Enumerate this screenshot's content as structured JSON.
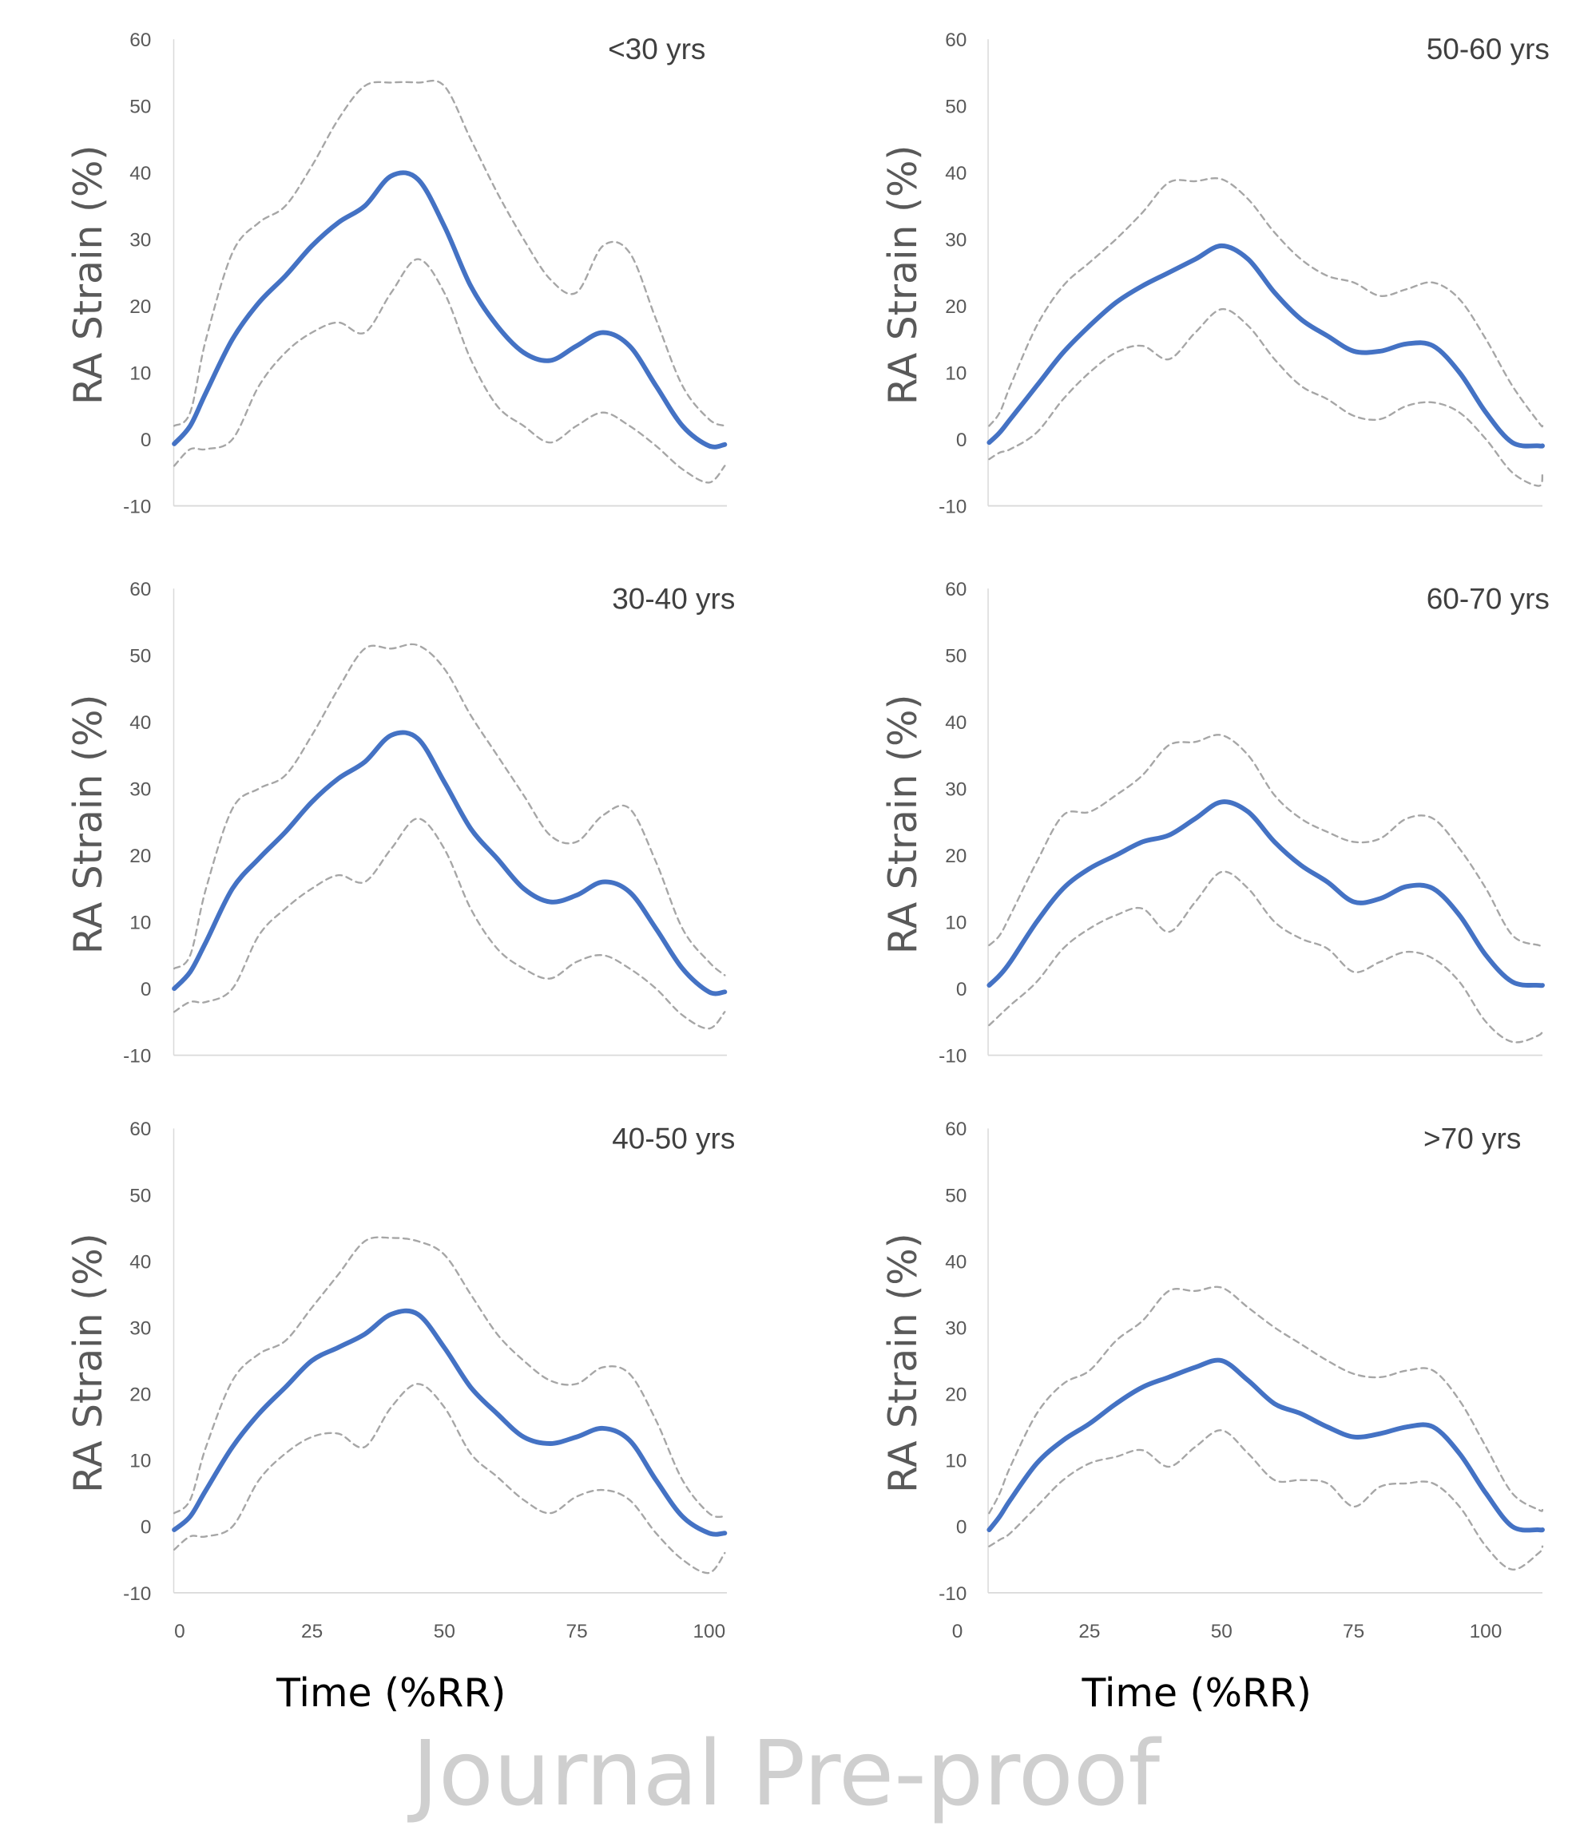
{
  "watermark": "Journal Pre-proof",
  "colors": {
    "mean": "#4472c4",
    "sd": "#a6a6a6",
    "axis": "#d9d9d9"
  },
  "chart_data": [
    {
      "type": "line",
      "title": "<30 yrs",
      "ylabel": "RA Strain (%)",
      "xlabel": "",
      "ylim": [
        -10,
        60
      ],
      "yticks": [
        "60",
        "50",
        "40",
        "30",
        "20",
        "10",
        "0",
        "-10"
      ],
      "xticks": [],
      "xlim": [
        -1.1,
        103.4
      ],
      "grid": false,
      "series": [
        {
          "style": "solid",
          "x": [
            -1,
            2,
            5,
            10,
            15,
            20,
            25,
            30,
            35,
            40,
            45,
            50,
            55,
            60,
            65,
            70,
            75,
            80,
            85,
            90,
            95,
            100,
            103
          ],
          "y": [
            -0.7,
            2,
            7,
            15,
            20.5,
            24.5,
            29,
            32.5,
            35,
            39.5,
            39,
            32,
            23,
            17,
            13,
            11.8,
            14,
            16,
            14,
            8,
            2,
            -1,
            -0.8
          ]
        },
        {
          "style": "dashed",
          "x": [
            -1,
            2,
            5,
            10,
            15,
            20,
            25,
            30,
            35,
            40,
            45,
            50,
            55,
            60,
            65,
            70,
            75,
            80,
            85,
            90,
            95,
            100,
            103
          ],
          "y": [
            2,
            4,
            15,
            28,
            32.5,
            35,
            41,
            48,
            53,
            53.5,
            53.5,
            53,
            45,
            37,
            30,
            24,
            22,
            29,
            28,
            18,
            8,
            3,
            2
          ]
        },
        {
          "style": "dashed",
          "x": [
            -1,
            2,
            5,
            10,
            15,
            20,
            25,
            30,
            35,
            40,
            45,
            50,
            55,
            60,
            65,
            70,
            75,
            80,
            85,
            90,
            95,
            100,
            103
          ],
          "y": [
            -4,
            -1.5,
            -1.5,
            0,
            8,
            13,
            16,
            17.5,
            16,
            22,
            27,
            22,
            12,
            5,
            2,
            -0.5,
            2,
            4,
            2,
            -1,
            -4.5,
            -6.5,
            -4
          ]
        }
      ]
    },
    {
      "type": "line",
      "title": "50-60 yrs",
      "ylabel": "RA Strain (%)",
      "xlabel": "",
      "ylim": [
        -10,
        60
      ],
      "yticks": [
        "60",
        "50",
        "40",
        "30",
        "20",
        "10",
        "0",
        "-10"
      ],
      "xticks": [],
      "xlim": [
        5.8,
        110.7
      ],
      "grid": false,
      "series": [
        {
          "style": "solid",
          "x": [
            6,
            8,
            10,
            15,
            20,
            25,
            30,
            35,
            40,
            45,
            50,
            55,
            60,
            65,
            70,
            75,
            80,
            85,
            90,
            95,
            100,
            105,
            110,
            110.7
          ],
          "y": [
            -0.5,
            1,
            3,
            8,
            13,
            17,
            20.5,
            23,
            25,
            27,
            29,
            27,
            22,
            18,
            15.5,
            13.2,
            13.2,
            14.3,
            14,
            10,
            4,
            -0.5,
            -1,
            -1
          ]
        },
        {
          "style": "dashed",
          "x": [
            6,
            8,
            10,
            15,
            20,
            25,
            30,
            35,
            40,
            45,
            50,
            55,
            60,
            65,
            70,
            75,
            80,
            85,
            90,
            95,
            100,
            105,
            110,
            110.7
          ],
          "y": [
            2,
            4,
            8,
            17,
            23,
            26.5,
            30,
            34,
            38.5,
            38.7,
            39,
            36,
            31,
            27,
            24.5,
            23.5,
            21.5,
            22.5,
            23.5,
            21,
            15,
            8,
            2.5,
            2
          ]
        },
        {
          "style": "dashed",
          "x": [
            6,
            8,
            10,
            15,
            20,
            25,
            30,
            35,
            40,
            45,
            50,
            55,
            60,
            65,
            70,
            75,
            80,
            85,
            90,
            95,
            100,
            105,
            110,
            110.7
          ],
          "y": [
            -3,
            -2,
            -1.5,
            1,
            6,
            10,
            13,
            14,
            12,
            16,
            19.5,
            17,
            12,
            8,
            6,
            3.5,
            3,
            5,
            5.5,
            4,
            0,
            -5,
            -7,
            -5
          ]
        }
      ]
    },
    {
      "type": "line",
      "title": "30-40 yrs",
      "ylabel": "RA Strain (%)",
      "xlabel": "",
      "ylim": [
        -10,
        60
      ],
      "yticks": [
        "60",
        "50",
        "40",
        "30",
        "20",
        "10",
        "0",
        "-10"
      ],
      "xticks": [],
      "xlim": [
        -1.1,
        103.4
      ],
      "grid": false,
      "series": [
        {
          "style": "solid",
          "x": [
            -1,
            2,
            5,
            10,
            15,
            20,
            25,
            30,
            35,
            40,
            45,
            50,
            55,
            60,
            65,
            70,
            75,
            80,
            85,
            90,
            95,
            100,
            103
          ],
          "y": [
            0,
            2.5,
            7,
            15,
            19.5,
            23.5,
            28,
            31.5,
            34,
            38,
            37.5,
            31,
            24,
            19.5,
            15,
            13,
            14,
            16,
            14.5,
            9,
            3,
            -0.5,
            -0.5
          ]
        },
        {
          "style": "dashed",
          "x": [
            -1,
            2,
            5,
            10,
            15,
            20,
            25,
            30,
            35,
            40,
            45,
            50,
            55,
            60,
            65,
            70,
            75,
            80,
            85,
            90,
            95,
            100,
            103
          ],
          "y": [
            3,
            5,
            15,
            27,
            30,
            32,
            38,
            45,
            51,
            51,
            51.5,
            48,
            41,
            35,
            29,
            23,
            22,
            26,
            27,
            19,
            9,
            4,
            2
          ]
        },
        {
          "style": "dashed",
          "x": [
            -1,
            2,
            5,
            10,
            15,
            20,
            25,
            30,
            35,
            40,
            45,
            50,
            55,
            60,
            65,
            70,
            75,
            80,
            85,
            90,
            95,
            100,
            103
          ],
          "y": [
            -3.5,
            -2,
            -2,
            0,
            8,
            12,
            15,
            17,
            16,
            21,
            25.5,
            21,
            12,
            6,
            3,
            1.5,
            4,
            5,
            3,
            0,
            -4,
            -6,
            -3.5
          ]
        }
      ]
    },
    {
      "type": "line",
      "title": "60-70 yrs",
      "ylabel": "RA Strain (%)",
      "xlabel": "",
      "ylim": [
        -10,
        60
      ],
      "yticks": [
        "60",
        "50",
        "40",
        "30",
        "20",
        "10",
        "0",
        "-10"
      ],
      "xticks": [],
      "xlim": [
        5.8,
        110.7
      ],
      "grid": false,
      "series": [
        {
          "style": "solid",
          "x": [
            6,
            8,
            10,
            15,
            20,
            25,
            30,
            35,
            40,
            45,
            50,
            55,
            60,
            65,
            70,
            75,
            80,
            85,
            90,
            95,
            100,
            105,
            110,
            110.7
          ],
          "y": [
            0.5,
            2,
            4,
            10,
            15,
            18,
            20,
            22,
            23,
            25.5,
            28,
            26.5,
            22,
            18.5,
            16,
            13,
            13.5,
            15.3,
            15,
            11,
            5,
            1,
            0.5,
            0.5
          ]
        },
        {
          "style": "dashed",
          "x": [
            6,
            8,
            10,
            15,
            20,
            25,
            30,
            35,
            40,
            45,
            50,
            55,
            60,
            65,
            70,
            75,
            80,
            85,
            90,
            95,
            100,
            105,
            110,
            110.7
          ],
          "y": [
            6.5,
            8,
            11,
            19,
            26,
            26.5,
            29,
            32,
            36.5,
            37,
            38,
            35,
            29,
            25.5,
            23.5,
            22,
            22.5,
            25.5,
            25.5,
            21,
            15,
            8,
            6.5,
            6.5
          ]
        },
        {
          "style": "dashed",
          "x": [
            6,
            8,
            10,
            15,
            20,
            25,
            30,
            35,
            40,
            45,
            50,
            55,
            60,
            65,
            70,
            75,
            80,
            85,
            90,
            95,
            100,
            105,
            110,
            110.7
          ],
          "y": [
            -5.5,
            -4,
            -2.5,
            1,
            6,
            9,
            11,
            12,
            8.5,
            13,
            17.5,
            15,
            10,
            7.5,
            6,
            2.5,
            4,
            5.5,
            4.5,
            1,
            -5,
            -8,
            -7,
            -6
          ]
        }
      ]
    },
    {
      "type": "line",
      "title": "40-50 yrs",
      "ylabel": "RA Strain (%)",
      "xlabel": "Time (%RR)",
      "ylim": [
        -10,
        60
      ],
      "yticks": [
        "60",
        "50",
        "40",
        "30",
        "20",
        "10",
        "0",
        "-10"
      ],
      "xticks": [
        "0",
        "25",
        "50",
        "75",
        "100"
      ],
      "xlim": [
        -1.1,
        103.4
      ],
      "grid": false,
      "series": [
        {
          "style": "solid",
          "x": [
            -1,
            2,
            5,
            10,
            15,
            20,
            25,
            30,
            35,
            40,
            45,
            50,
            55,
            60,
            65,
            70,
            75,
            80,
            85,
            90,
            95,
            100,
            103
          ],
          "y": [
            -0.5,
            1.5,
            5.5,
            12,
            17,
            21,
            25,
            27,
            29,
            32,
            32,
            27,
            21,
            17,
            13.5,
            12.5,
            13.5,
            14.8,
            13,
            7,
            1.5,
            -1,
            -1
          ]
        },
        {
          "style": "dashed",
          "x": [
            -1,
            2,
            5,
            10,
            15,
            20,
            25,
            30,
            35,
            40,
            45,
            50,
            55,
            60,
            65,
            70,
            75,
            80,
            85,
            90,
            95,
            100,
            103
          ],
          "y": [
            2,
            4,
            12,
            22,
            26,
            28,
            33,
            38,
            43,
            43.5,
            43,
            41,
            35,
            29,
            25,
            22,
            21.5,
            24,
            23,
            16,
            7,
            2,
            1.5
          ]
        },
        {
          "style": "dashed",
          "x": [
            -1,
            2,
            5,
            10,
            15,
            20,
            25,
            30,
            35,
            40,
            45,
            50,
            55,
            60,
            65,
            70,
            75,
            80,
            85,
            90,
            95,
            100,
            103
          ],
          "y": [
            -3.5,
            -1.5,
            -1.5,
            0,
            7,
            11,
            13.5,
            14,
            12,
            18,
            21.5,
            18,
            11,
            7.5,
            4,
            2,
            4.5,
            5.5,
            4,
            -1,
            -5,
            -7,
            -4
          ]
        }
      ]
    },
    {
      "type": "line",
      "title": ">70 yrs",
      "ylabel": "RA Strain (%)",
      "xlabel": "Time (%RR)",
      "ylim": [
        -10,
        60
      ],
      "yticks": [
        "60",
        "50",
        "40",
        "30",
        "20",
        "10",
        "0",
        "-10"
      ],
      "xticks": [
        "0",
        "25",
        "50",
        "75",
        "100"
      ],
      "xlim": [
        5.8,
        110.7
      ],
      "grid": false,
      "series": [
        {
          "style": "solid",
          "x": [
            6,
            8,
            10,
            15,
            20,
            25,
            30,
            35,
            40,
            45,
            50,
            55,
            60,
            65,
            70,
            75,
            80,
            85,
            90,
            95,
            100,
            105,
            110,
            110.7
          ],
          "y": [
            -0.5,
            1.5,
            4,
            9.5,
            13,
            15.5,
            18.5,
            21,
            22.5,
            24,
            25,
            22,
            18.5,
            17,
            15,
            13.5,
            14,
            15,
            15,
            11,
            5,
            0,
            -0.5,
            -0.5
          ]
        },
        {
          "style": "dashed",
          "x": [
            6,
            8,
            10,
            15,
            20,
            25,
            30,
            35,
            40,
            45,
            50,
            55,
            60,
            65,
            70,
            75,
            80,
            85,
            90,
            95,
            100,
            105,
            110,
            110.7
          ],
          "y": [
            2,
            5,
            9,
            17,
            21.5,
            23.5,
            28,
            31,
            35.5,
            35.5,
            36,
            33,
            30,
            27.5,
            25,
            23,
            22.5,
            23.5,
            23.5,
            19,
            12,
            5,
            2.5,
            2.5
          ]
        },
        {
          "style": "dashed",
          "x": [
            6,
            8,
            10,
            15,
            20,
            25,
            30,
            35,
            40,
            45,
            50,
            55,
            60,
            65,
            70,
            75,
            80,
            85,
            90,
            95,
            100,
            105,
            110,
            110.7
          ],
          "y": [
            -3,
            -2,
            -1,
            3,
            7,
            9.5,
            10.5,
            11.5,
            9,
            12,
            14.5,
            11,
            7,
            7,
            6.5,
            3,
            6,
            6.5,
            6.5,
            3,
            -3,
            -6.5,
            -4,
            -3
          ]
        }
      ]
    }
  ]
}
